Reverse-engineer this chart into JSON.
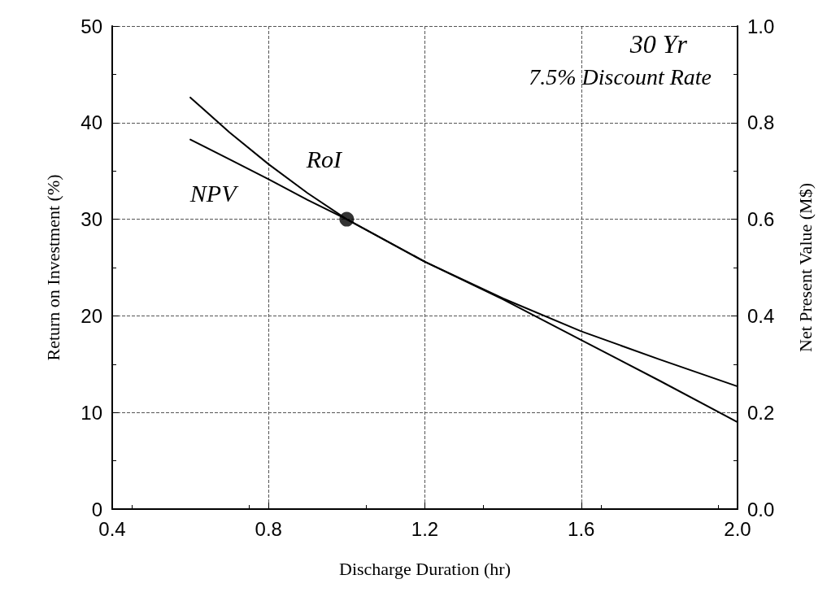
{
  "chart_data": {
    "type": "line",
    "xlabel": "Discharge Duration (hr)",
    "ylabel": "Return on Investment (%)",
    "y2label": "Net Present Value (M$)",
    "annotations": [
      "30 Yr",
      "7.5% Discount Rate"
    ],
    "series": [
      {
        "name": "RoI",
        "color": "#000000",
        "x": [
          0.6,
          0.7,
          0.8,
          0.9,
          1.0,
          1.2,
          1.4,
          1.6,
          1.8,
          2.0
        ],
        "values": [
          42.6,
          39.0,
          35.7,
          32.7,
          30.0,
          25.6,
          21.7,
          17.5,
          13.3,
          9.0
        ]
      },
      {
        "name": "NPV",
        "color": "#000000",
        "axis": "y2",
        "x": [
          0.6,
          0.7,
          0.8,
          0.9,
          1.0,
          1.2,
          1.4,
          1.6,
          1.8,
          2.0
        ],
        "values": [
          0.765,
          0.724,
          0.683,
          0.64,
          0.6,
          0.512,
          0.436,
          0.368,
          0.31,
          0.254
        ]
      },
      {
        "type": "scatter",
        "color": "#000000",
        "x": [
          1.0
        ],
        "values": [
          30
        ],
        "marker": "circle"
      }
    ],
    "xlim": [
      0.4,
      2.0
    ],
    "xticks": [
      0.4,
      0.8,
      1.2,
      1.6,
      {
        "value": 2.0,
        "label": "2.0"
      }
    ],
    "ylim": [
      0,
      50
    ],
    "yticks": [
      0,
      10,
      20,
      30,
      40,
      50
    ],
    "y2lim": [
      0,
      1.0
    ],
    "y2ticks": [
      {
        "value": 0,
        "label": "0.0"
      },
      0.2,
      0.4,
      0.6,
      0.8,
      {
        "value": 1.0,
        "label": "1.0"
      }
    ],
    "grid": true,
    "legend": false,
    "marker": "none",
    "line_style": "solid"
  }
}
